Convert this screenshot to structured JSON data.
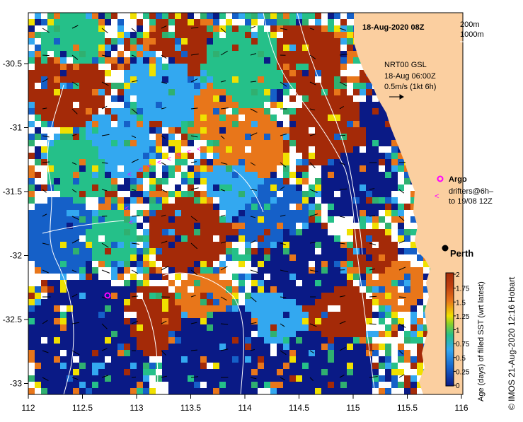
{
  "map": {
    "date_title": "18-Aug-2020 08Z",
    "contour_legend": [
      "200m",
      "1000m"
    ],
    "current_info": [
      "NRT00 GSL",
      "18-Aug 06:00Z",
      "0.5m/s (1kt 6h)"
    ],
    "argo_label": "Argo",
    "drifters_label": [
      "drifters@6h–",
      "to 19/08 12Z"
    ],
    "city_label": "Perth",
    "credit": "©  IMOS 21-Aug-2020 12:16 Hobart",
    "x_ticks": [
      "112",
      "112.5",
      "113",
      "113.5",
      "114",
      "114.5",
      "115",
      "115.5",
      "116"
    ],
    "y_ticks": [
      "-30.5",
      "-31",
      "-31.5",
      "-32",
      "-32.5",
      "-33"
    ],
    "colorbar": {
      "title": "Age (days) of filled SST (wrt latest)",
      "ticks": [
        "2",
        "1.75",
        "1.5",
        "1.25",
        "1",
        "0.75",
        "0.5",
        "0.25",
        "0"
      ]
    },
    "colors": {
      "land": "#FBCFA0",
      "deep_blue": "#0A1A86",
      "ocean_blue": "#1560C8",
      "light_blue": "#33A8F0",
      "green": "#25C089",
      "teal": "#30B070",
      "yellow": "#F0E000",
      "orange": "#E8761A",
      "red_brown": "#A42A08",
      "magenta": "#FF00FF"
    }
  }
}
